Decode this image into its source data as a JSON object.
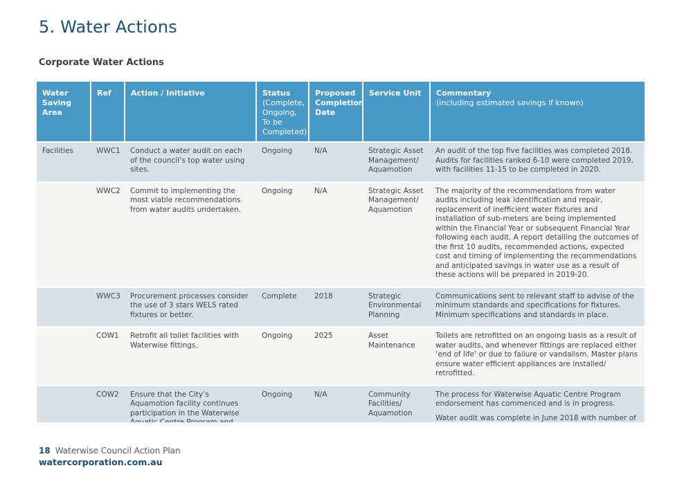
{
  "page": {
    "title": "5. Water Actions",
    "section_heading": "Corporate Water Actions"
  },
  "colors": {
    "title_blue": "#1d4f76",
    "table_header_bg": "#4899c7",
    "row_blue": "#d6e1e8",
    "row_plain": "#f5f5f4",
    "body_text": "#41484e",
    "footer_gray": "#595959"
  },
  "table": {
    "columns": [
      {
        "label": "Water Saving Area"
      },
      {
        "label": "Ref"
      },
      {
        "label": "Action / Initiative"
      },
      {
        "label": "Status",
        "sub": "(Complete, Ongoing, To be Completed)"
      },
      {
        "label": "Proposed Completion Date"
      },
      {
        "label": "Service Unit"
      },
      {
        "label": "Commentary",
        "sub": "(including estimated savings if known)"
      }
    ],
    "rows": [
      {
        "area": "Facilities",
        "ref": "WWC1",
        "action": "Conduct a water audit on each of the council’s top water using sites.",
        "status": "Ongoing",
        "date": "N/A",
        "service_unit": "Strategic Asset Management/ Aquamotion",
        "commentary": [
          "An audit of the top five facilities was completed 2018. Audits for facilities ranked 6-10 were completed 2019, with facilities 11-15 to be completed in 2020."
        ]
      },
      {
        "area": "",
        "ref": "WWC2",
        "action": "Commit to implementing the most viable recommendations from water audits undertaken.",
        "status": "Ongoing",
        "date": "N/A",
        "service_unit": "Strategic Asset Management/ Aquamotion",
        "commentary": [
          "The majority of the recommendations from water audits including leak identification and repair, replacement of inefficient water fixtures and installation of sub-meters are being implemented within the Financial Year or subsequent Financial Year following each audit. A report detailing the outcomes of the first 10 audits, recommended actions, expected cost and timing of implementing the recommendations and anticipated savings in water use as a result of these actions will be prepared in 2019-20."
        ]
      },
      {
        "area": "",
        "ref": "WWC3",
        "action": "Procurement processes consider the use of 3 stars WELS rated fixtures or better.",
        "status": "Complete",
        "date": "2018",
        "service_unit": "Strategic Environmental Planning",
        "commentary": [
          "Communications sent to relevant staff to advise of the minimum standards and specifications for fixtures. Minimum specifications and standards in place."
        ]
      },
      {
        "area": "",
        "ref": "COW1",
        "action": "Retrofit all toilet facilities with Waterwise fittings.",
        "status": "Ongoing",
        "date": "2025",
        "service_unit": "Asset Maintenance",
        "commentary": [
          "Toilets are retrofitted on an ongoing basis as a result of water audits, and whenever fittings are replaced either ‘end of life’ or due to failure or vandalism. Master plans ensure water efficient appliances are installed/ retrofitted."
        ]
      },
      {
        "area": "",
        "ref": "COW2",
        "action": "Ensure that the City’s Aquamotion facility continues participation in the Waterwise Aquatic Centre Program and",
        "status": "Ongoing",
        "date": "N/A",
        "service_unit": "Community Facilities/ Aquamotion",
        "commentary": [
          "The process for Waterwise Aquatic Centre Program endorsement has commenced and is in progress.",
          "Water audit was complete in June 2018 with number of"
        ]
      }
    ]
  },
  "footer": {
    "page_number": "18",
    "doc_title": "Waterwise Council Action Plan",
    "website": "watercorporation.com.au"
  }
}
